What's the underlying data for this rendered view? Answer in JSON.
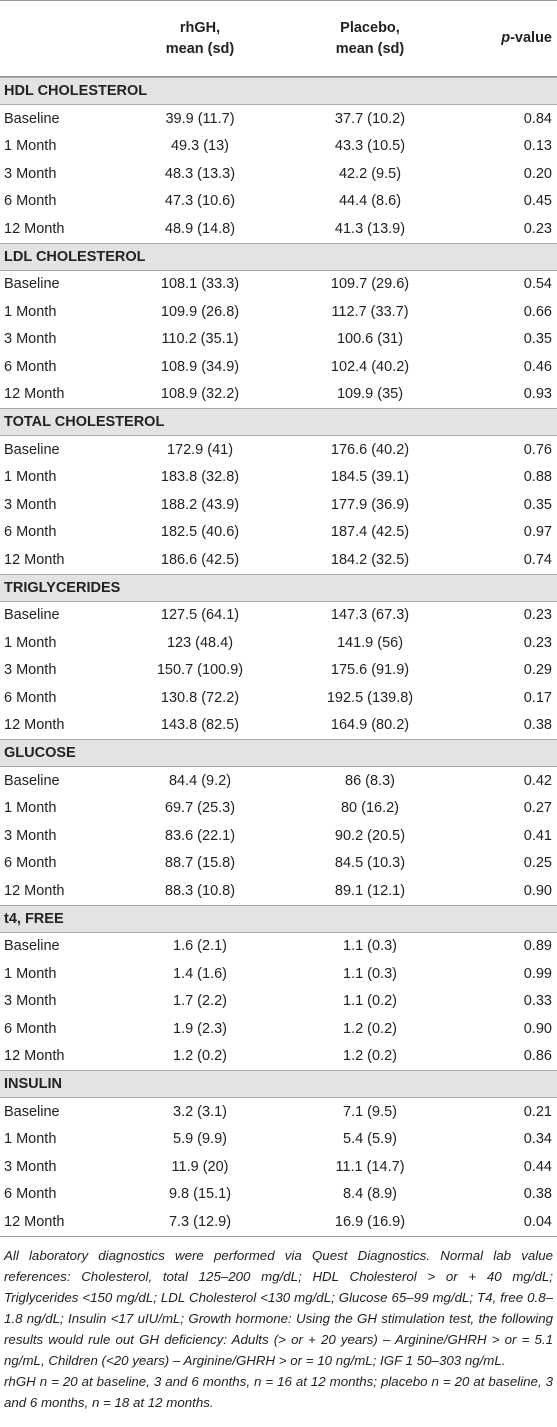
{
  "table": {
    "columns": [
      {
        "lines": [
          "rhGH,",
          "mean (sd)"
        ]
      },
      {
        "lines": [
          "Placebo,",
          "mean (sd)"
        ]
      },
      {
        "italic": "p",
        "rest": "-value"
      }
    ],
    "sections": [
      {
        "title": "HDL CHOLESTEROL",
        "rows": [
          [
            "Baseline",
            "39.9 (11.7)",
            "37.7 (10.2)",
            "0.84"
          ],
          [
            "1 Month",
            "49.3 (13)",
            "43.3 (10.5)",
            "0.13"
          ],
          [
            "3 Month",
            "48.3 (13.3)",
            "42.2 (9.5)",
            "0.20"
          ],
          [
            "6 Month",
            "47.3 (10.6)",
            "44.4 (8.6)",
            "0.45"
          ],
          [
            "12 Month",
            "48.9 (14.8)",
            "41.3 (13.9)",
            "0.23"
          ]
        ]
      },
      {
        "title": "LDL CHOLESTEROL",
        "rows": [
          [
            "Baseline",
            "108.1 (33.3)",
            "109.7 (29.6)",
            "0.54"
          ],
          [
            "1 Month",
            "109.9 (26.8)",
            "112.7 (33.7)",
            "0.66"
          ],
          [
            "3 Month",
            "110.2 (35.1)",
            "100.6 (31)",
            "0.35"
          ],
          [
            "6 Month",
            "108.9 (34.9)",
            "102.4 (40.2)",
            "0.46"
          ],
          [
            "12 Month",
            "108.9 (32.2)",
            "109.9 (35)",
            "0.93"
          ]
        ]
      },
      {
        "title": "TOTAL CHOLESTEROL",
        "rows": [
          [
            "Baseline",
            "172.9 (41)",
            "176.6 (40.2)",
            "0.76"
          ],
          [
            "1 Month",
            "183.8 (32.8)",
            "184.5 (39.1)",
            "0.88"
          ],
          [
            "3 Month",
            "188.2 (43.9)",
            "177.9 (36.9)",
            "0.35"
          ],
          [
            "6 Month",
            "182.5 (40.6)",
            "187.4 (42.5)",
            "0.97"
          ],
          [
            "12 Month",
            "186.6 (42.5)",
            "184.2 (32.5)",
            "0.74"
          ]
        ]
      },
      {
        "title": "TRIGLYCERIDES",
        "rows": [
          [
            "Baseline",
            "127.5 (64.1)",
            "147.3 (67.3)",
            "0.23"
          ],
          [
            "1 Month",
            "123 (48.4)",
            "141.9 (56)",
            "0.23"
          ],
          [
            "3 Month",
            "150.7 (100.9)",
            "175.6 (91.9)",
            "0.29"
          ],
          [
            "6 Month",
            "130.8 (72.2)",
            "192.5 (139.8)",
            "0.17"
          ],
          [
            "12 Month",
            "143.8 (82.5)",
            "164.9 (80.2)",
            "0.38"
          ]
        ]
      },
      {
        "title": "GLUCOSE",
        "rows": [
          [
            "Baseline",
            "84.4 (9.2)",
            "86 (8.3)",
            "0.42"
          ],
          [
            "1 Month",
            "69.7 (25.3)",
            "80 (16.2)",
            "0.27"
          ],
          [
            "3 Month",
            "83.6 (22.1)",
            "90.2 (20.5)",
            "0.41"
          ],
          [
            "6 Month",
            "88.7 (15.8)",
            "84.5 (10.3)",
            "0.25"
          ],
          [
            "12 Month",
            "88.3 (10.8)",
            "89.1 (12.1)",
            "0.90"
          ]
        ]
      },
      {
        "title": "t4, FREE",
        "rows": [
          [
            "Baseline",
            "1.6 (2.1)",
            "1.1 (0.3)",
            "0.89"
          ],
          [
            "1 Month",
            "1.4 (1.6)",
            "1.1 (0.3)",
            "0.99"
          ],
          [
            "3 Month",
            "1.7 (2.2)",
            "1.1 (0.2)",
            "0.33"
          ],
          [
            "6 Month",
            "1.9 (2.3)",
            "1.2 (0.2)",
            "0.90"
          ],
          [
            "12 Month",
            "1.2 (0.2)",
            "1.2 (0.2)",
            "0.86"
          ]
        ]
      },
      {
        "title": "INSULIN",
        "rows": [
          [
            "Baseline",
            "3.2 (3.1)",
            "7.1 (9.5)",
            "0.21"
          ],
          [
            "1 Month",
            "5.9 (9.9)",
            "5.4 (5.9)",
            "0.34"
          ],
          [
            "3 Month",
            "11.9 (20)",
            "11.1 (14.7)",
            "0.44"
          ],
          [
            "6 Month",
            "9.8 (15.1)",
            "8.4 (8.9)",
            "0.38"
          ],
          [
            "12 Month",
            "7.3 (12.9)",
            "16.9 (16.9)",
            "0.04"
          ]
        ]
      }
    ]
  },
  "footnotes": [
    "All laboratory diagnostics were performed via Quest Diagnostics. Normal lab value references: Cholesterol, total 125–200 mg/dL; HDL Cholesterol > or + 40 mg/dL; Triglycerides <150 mg/dL; LDL Cholesterol <130 mg/dL; Glucose 65–99 mg/dL; T4, free 0.8–1.8 ng/dL; Insulin <17 uIU/mL; Growth hormone: Using the GH stimulation test, the following results would rule out GH deficiency: Adults (> or + 20 years) – Arginine/GHRH > or = 5.1 ng/mL, Children (<20 years) – Arginine/GHRH > or = 10 ng/mL; IGF 1 50–303 ng/mL.",
    "rhGH n = 20 at baseline, 3 and 6 months, n = 16 at 12 months; placebo n = 20 at baseline, 3 and 6 months, n = 18 at 12 months."
  ]
}
